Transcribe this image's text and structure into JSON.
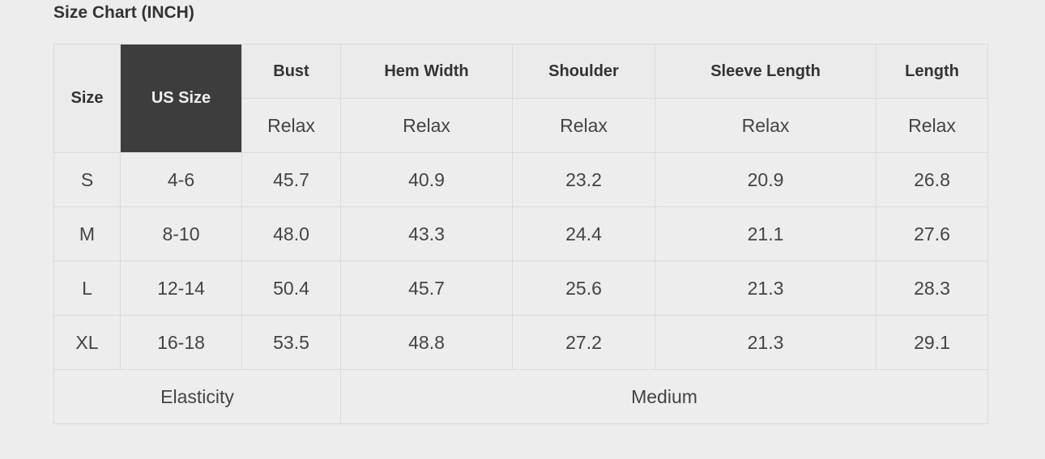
{
  "title": "Size Chart (INCH)",
  "header": {
    "size": "Size",
    "us_size": "US Size",
    "columns": [
      "Bust",
      "Hem Width",
      "Shoulder",
      "Sleeve Length",
      "Length"
    ],
    "sub": [
      "Relax",
      "Relax",
      "Relax",
      "Relax",
      "Relax"
    ]
  },
  "rows": [
    {
      "size": "S",
      "us": "4-6",
      "values": [
        "45.7",
        "40.9",
        "23.2",
        "20.9",
        "26.8"
      ]
    },
    {
      "size": "M",
      "us": "8-10",
      "values": [
        "48.0",
        "43.3",
        "24.4",
        "21.1",
        "27.6"
      ]
    },
    {
      "size": "L",
      "us": "12-14",
      "values": [
        "50.4",
        "45.7",
        "25.6",
        "21.3",
        "28.3"
      ]
    },
    {
      "size": "XL",
      "us": "16-18",
      "values": [
        "53.5",
        "48.8",
        "27.2",
        "21.3",
        "29.1"
      ]
    }
  ],
  "footer": {
    "label": "Elasticity",
    "value": "Medium"
  },
  "colors": {
    "highlight": "#3d3d3d",
    "background": "#ededed",
    "border": "#dadada"
  }
}
